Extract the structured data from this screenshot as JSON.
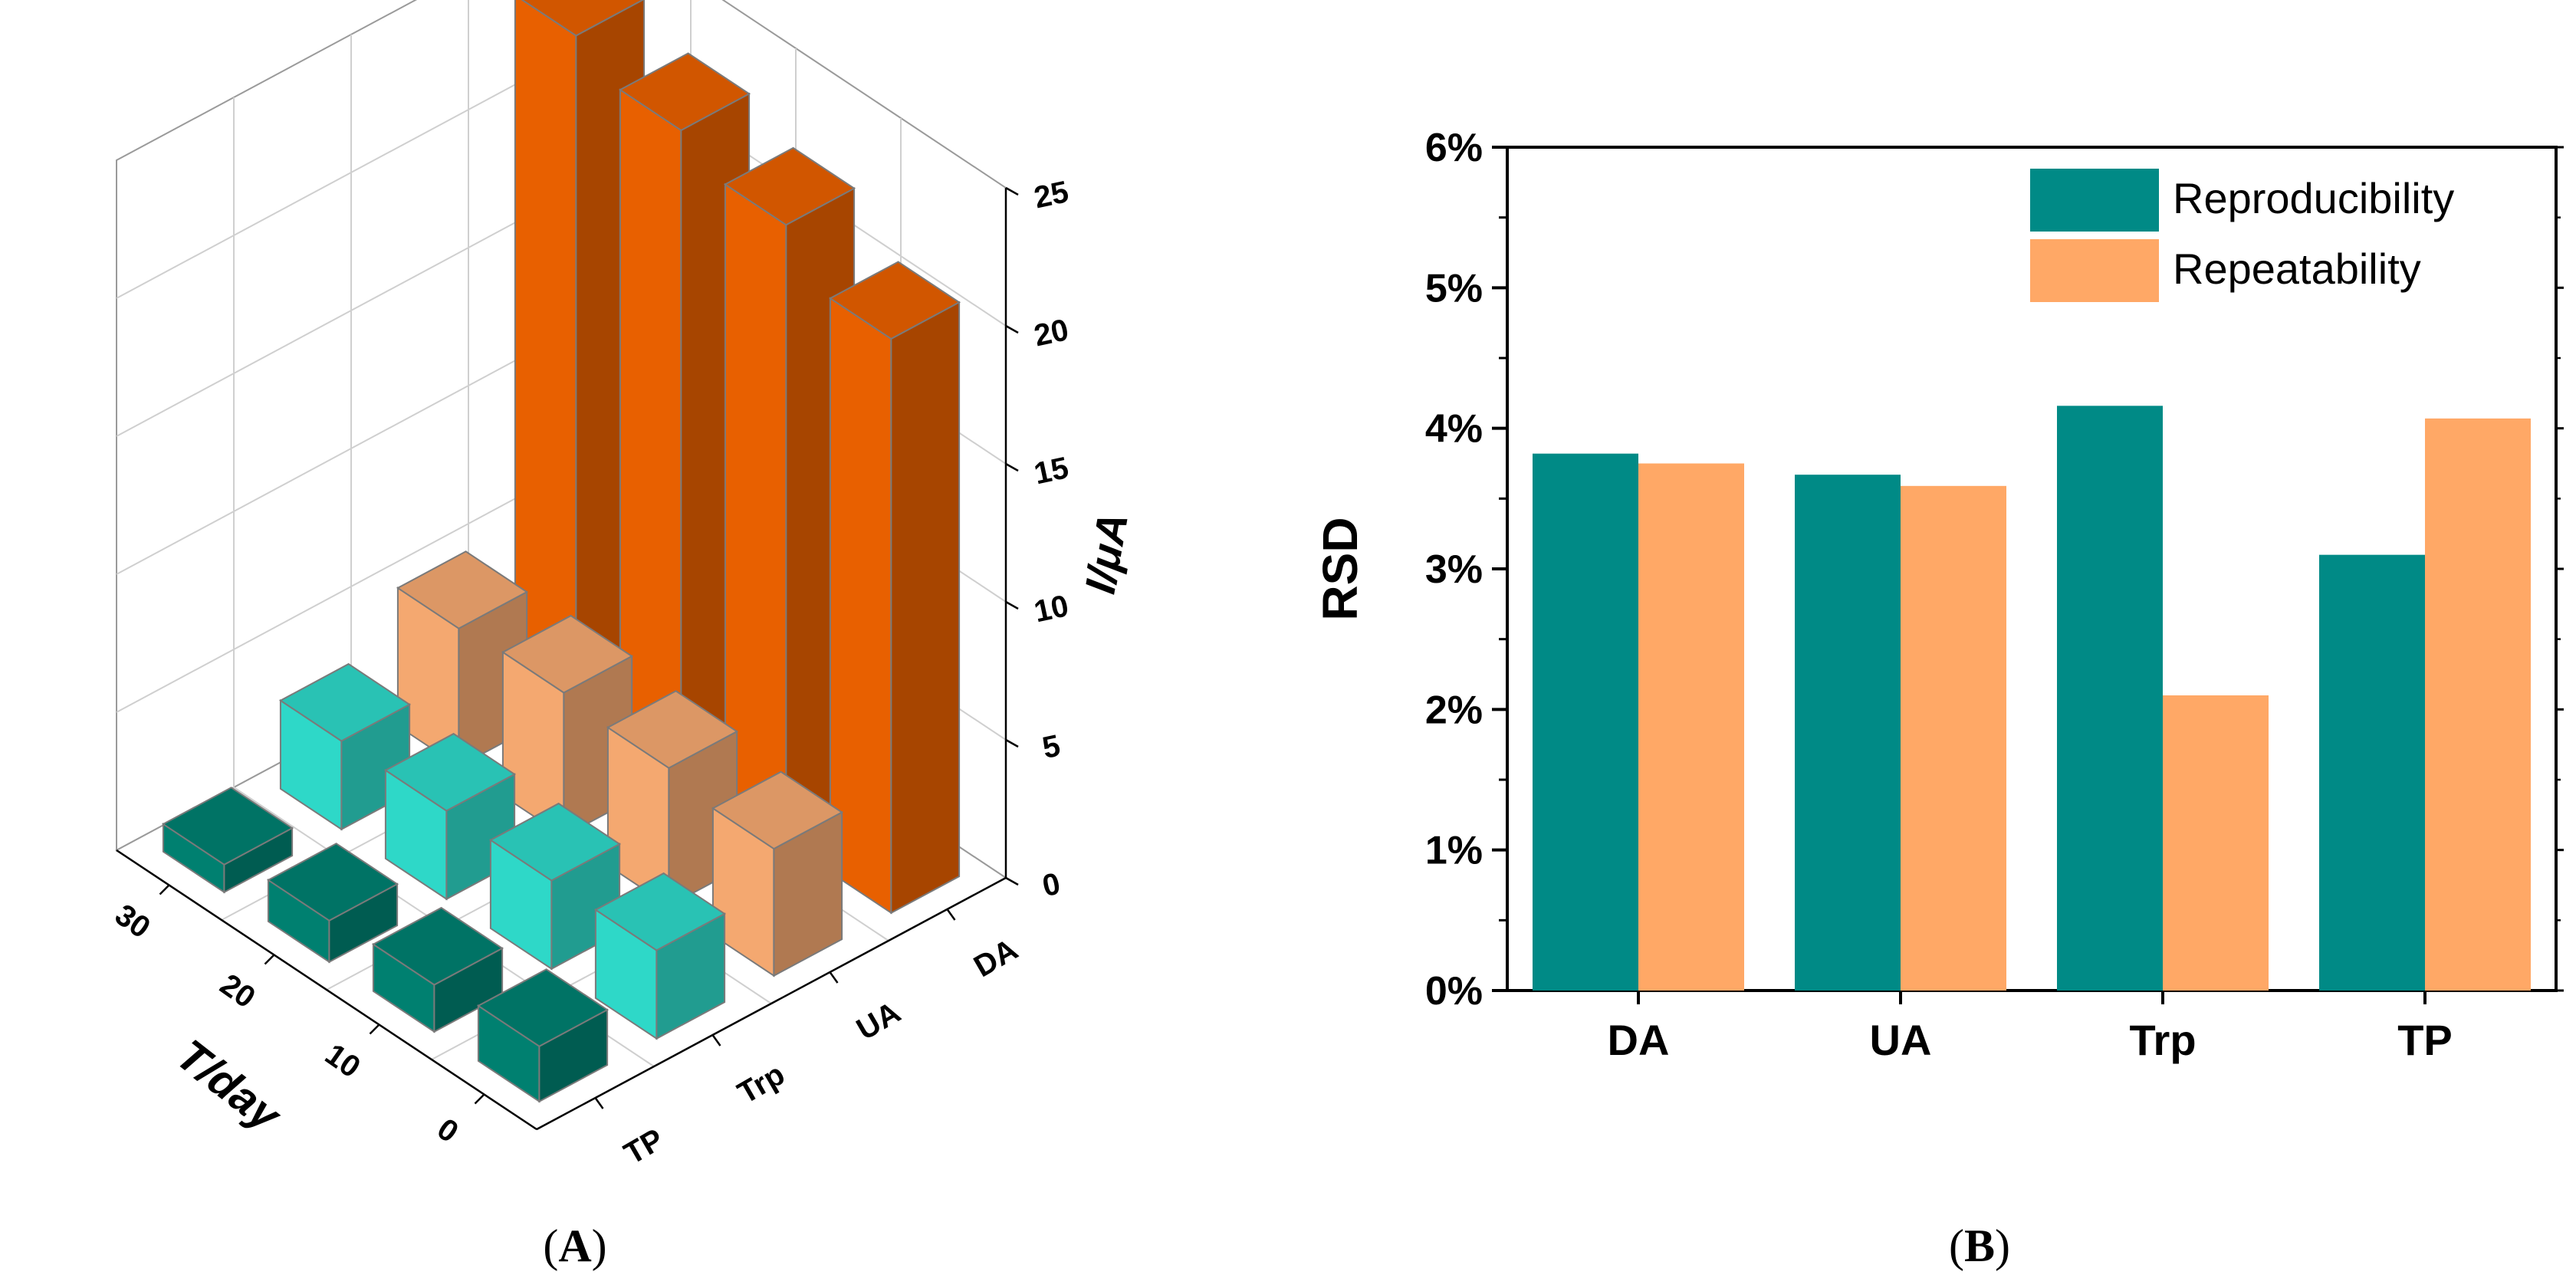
{
  "chart_data": [
    {
      "panel": "A",
      "type": "bar3d",
      "caption_letter": "A",
      "xlabel": "T/day",
      "ylabel": "",
      "zlabel": "I/μA",
      "x_ticks": [
        "0",
        "10",
        "20",
        "30"
      ],
      "y_categories": [
        "TP",
        "Trp",
        "UA",
        "DA"
      ],
      "zlim": [
        0,
        25
      ],
      "z_ticks": [
        "0",
        "5",
        "10",
        "15",
        "20",
        "25"
      ],
      "series": [
        {
          "name": "DA",
          "color": "#E86000",
          "x": [
            0,
            10,
            20,
            30
          ],
          "values": [
            20.8,
            22.4,
            23.3,
            24.2
          ]
        },
        {
          "name": "UA",
          "color": "#F4A870",
          "x": [
            0,
            10,
            20,
            30
          ],
          "values": [
            4.6,
            5.0,
            5.2,
            5.0
          ]
        },
        {
          "name": "Trp",
          "color": "#2ED8C8",
          "x": [
            0,
            10,
            20,
            30
          ],
          "values": [
            3.2,
            3.2,
            3.2,
            3.2
          ]
        },
        {
          "name": "TP",
          "color": "#008070",
          "x": [
            0,
            10,
            20,
            30
          ],
          "values": [
            2.0,
            1.7,
            1.5,
            1.0
          ]
        }
      ]
    },
    {
      "panel": "B",
      "type": "bar",
      "caption_letter": "B",
      "categories": [
        "DA",
        "UA",
        "Trp",
        "TP"
      ],
      "ylabel": "RSD",
      "ylim": [
        0,
        6
      ],
      "y_ticks": [
        "0%",
        "1%",
        "2%",
        "3%",
        "4%",
        "5%",
        "6%"
      ],
      "legend_position": "top-right",
      "series": [
        {
          "name": "Reproducibility",
          "color": "#008A86",
          "values": [
            3.82,
            3.67,
            4.16,
            3.1
          ]
        },
        {
          "name": "Repeatability",
          "color": "#FFA866",
          "values": [
            3.75,
            3.59,
            2.1,
            4.07
          ]
        }
      ]
    }
  ]
}
